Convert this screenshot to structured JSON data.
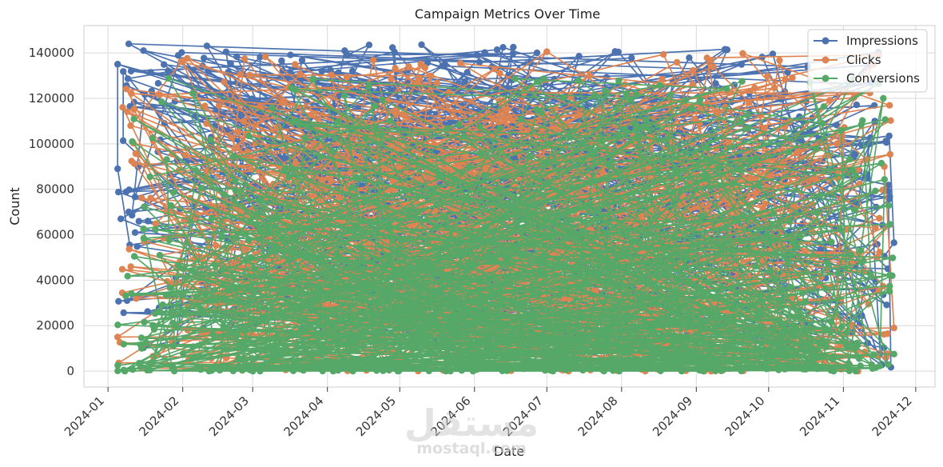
{
  "chart_data": {
    "type": "line",
    "title": "Campaign Metrics Over Time",
    "xlabel": "Date",
    "ylabel": "Count",
    "x_range": [
      "2023-12-22",
      "2024-12-09"
    ],
    "ylim": [
      -7000,
      152000
    ],
    "x_ticks": [
      "2024-01",
      "2024-02",
      "2024-03",
      "2024-04",
      "2024-05",
      "2024-06",
      "2024-07",
      "2024-08",
      "2024-09",
      "2024-10",
      "2024-11",
      "2024-12"
    ],
    "y_ticks": [
      0,
      20000,
      40000,
      60000,
      80000,
      100000,
      120000,
      140000
    ],
    "y_tick_labels": [
      "0",
      "20000",
      "40000",
      "60000",
      "80000",
      "100000",
      "120000",
      "140000"
    ],
    "grid": true,
    "legend_position": "top-right",
    "date_range": [
      "2024-01-05",
      "2024-11-22"
    ],
    "series": [
      {
        "name": "Impressions",
        "color": "#4c72b0",
        "min": 1000,
        "max": 144000,
        "points": 600
      },
      {
        "name": "Clicks",
        "color": "#dd8452",
        "min": 0,
        "max": 140000,
        "points": 600
      },
      {
        "name": "Conversions",
        "color": "#55a868",
        "min": 0,
        "max": 129000,
        "points": 600
      }
    ],
    "sample_points": {
      "Impressions": [
        [
          "2024-01-05",
          135000
        ],
        [
          "2024-01-05",
          89000
        ],
        [
          "2024-01-10",
          55500
        ],
        [
          "2024-11-20",
          103500
        ],
        [
          "2024-11-22",
          56500
        ],
        [
          "2024-11-18",
          50500
        ]
      ],
      "Clicks": [
        [
          "2024-07-01",
          140500
        ],
        [
          "2024-01-05",
          15000
        ],
        [
          "2024-11-22",
          19000
        ],
        [
          "2024-11-18",
          90000
        ]
      ],
      "Conversions": [
        [
          "2024-03-26",
          128500
        ],
        [
          "2024-08-05",
          119500
        ],
        [
          "2024-11-22",
          7500
        ],
        [
          "2024-01-08",
          0
        ]
      ]
    }
  },
  "watermark": {
    "main": "مستقل",
    "sub": "mostaql.com"
  }
}
